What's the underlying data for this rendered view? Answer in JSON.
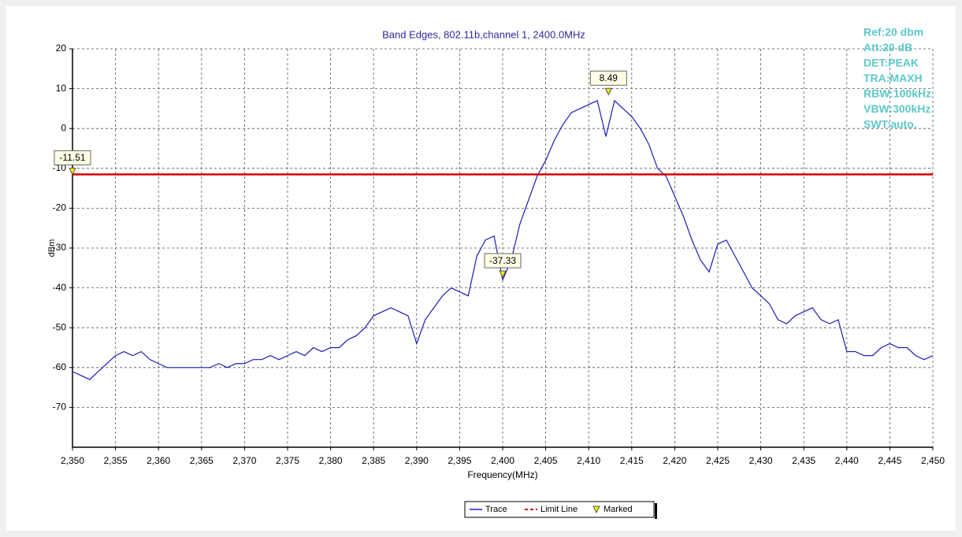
{
  "chart_data": {
    "type": "line",
    "title": "Band Edges, 802.11b,channel 1, 2400.0MHz",
    "xlabel": "Frequency(MHz)",
    "ylabel": "dBm",
    "x": [
      2350,
      2351,
      2352,
      2353,
      2354,
      2355,
      2356,
      2357,
      2358,
      2359,
      2360,
      2361,
      2362,
      2363,
      2364,
      2365,
      2366,
      2367,
      2368,
      2369,
      2370,
      2371,
      2372,
      2373,
      2374,
      2375,
      2376,
      2377,
      2378,
      2379,
      2380,
      2381,
      2382,
      2383,
      2384,
      2385,
      2386,
      2387,
      2388,
      2389,
      2390,
      2391,
      2392,
      2393,
      2394,
      2395,
      2396,
      2397,
      2398,
      2399,
      2400,
      2401,
      2402,
      2403,
      2404,
      2405,
      2406,
      2407,
      2408,
      2409,
      2410,
      2411,
      2412,
      2413,
      2414,
      2415,
      2416,
      2417,
      2418,
      2419,
      2420,
      2421,
      2422,
      2423,
      2424,
      2425,
      2426,
      2427,
      2428,
      2429,
      2430,
      2431,
      2432,
      2433,
      2434,
      2435,
      2436,
      2437,
      2438,
      2439,
      2440,
      2441,
      2442,
      2443,
      2444,
      2445,
      2446,
      2447,
      2448,
      2449,
      2450
    ],
    "series": [
      {
        "name": "Trace",
        "color": "#1c1cb4",
        "values": [
          -61,
          -62,
          -63,
          -61,
          -59,
          -57,
          -56,
          -57,
          -56,
          -58,
          -59,
          -60,
          -60,
          -60,
          -60,
          -60,
          -60,
          -59,
          -60,
          -59,
          -59,
          -58,
          -58,
          -57,
          -58,
          -57,
          -56,
          -57,
          -55,
          -56,
          -55,
          -55,
          -53,
          -52,
          -50,
          -47,
          -46,
          -45,
          -46,
          -47,
          -54,
          -48,
          -45,
          -42,
          -40,
          -41,
          -42,
          -32,
          -28,
          -27,
          -38,
          -33,
          -24,
          -18,
          -12,
          -8,
          -3,
          1,
          4,
          5,
          6,
          7,
          -2,
          7,
          5,
          3,
          0,
          -4,
          -10,
          -12,
          -17,
          -22,
          -28,
          -33,
          -36,
          -29,
          -28,
          -32,
          -36,
          -40,
          -42,
          -44,
          -48,
          -49,
          -47,
          -46,
          -45,
          -48,
          -49,
          -48,
          -56,
          -56,
          -57,
          -57,
          -55,
          -54,
          -55,
          -55,
          -57,
          -58,
          -57
        ]
      }
    ],
    "limit_line": {
      "name": "Limit Line",
      "color": "#d40000",
      "value": -11.51
    },
    "markers": {
      "name": "Marked",
      "color": "#f0f000",
      "x": [
        2350,
        2400,
        2412.3
      ],
      "values": [
        -11.51,
        -37.33,
        8.49
      ]
    },
    "info": [
      "Ref:20 dbm",
      "Att:20 dB",
      "DET:PEAK",
      "TRA:MAXH",
      "RBW:100kHz",
      "VBW:300kHz",
      "SWT:auto."
    ],
    "xlim": [
      2350,
      2450
    ],
    "xticks": [
      {
        "value": 2350,
        "label": "2,350"
      },
      {
        "value": 2355,
        "label": "2,355"
      },
      {
        "value": 2360,
        "label": "2,360"
      },
      {
        "value": 2365,
        "label": "2,365"
      },
      {
        "value": 2370,
        "label": "2,370"
      },
      {
        "value": 2375,
        "label": "2,375"
      },
      {
        "value": 2380,
        "label": "2,380"
      },
      {
        "value": 2385,
        "label": "2,385"
      },
      {
        "value": 2390,
        "label": "2,390"
      },
      {
        "value": 2395,
        "label": "2,395"
      },
      {
        "value": 2400,
        "label": "2,400"
      },
      {
        "value": 2405,
        "label": "2,405"
      },
      {
        "value": 2410,
        "label": "2,410"
      },
      {
        "value": 2415,
        "label": "2,415"
      },
      {
        "value": 2420,
        "label": "2,420"
      },
      {
        "value": 2425,
        "label": "2,425"
      },
      {
        "value": 2430,
        "label": "2,430"
      },
      {
        "value": 2435,
        "label": "2,435"
      },
      {
        "value": 2440,
        "label": "2,440"
      },
      {
        "value": 2445,
        "label": "2,445"
      },
      {
        "value": 2450,
        "label": "2,450"
      }
    ],
    "ylim": [
      -80,
      20
    ],
    "yticks": [
      20,
      10,
      0,
      -10,
      -20,
      -30,
      -40,
      -50,
      -60,
      -70
    ],
    "grid": true
  }
}
